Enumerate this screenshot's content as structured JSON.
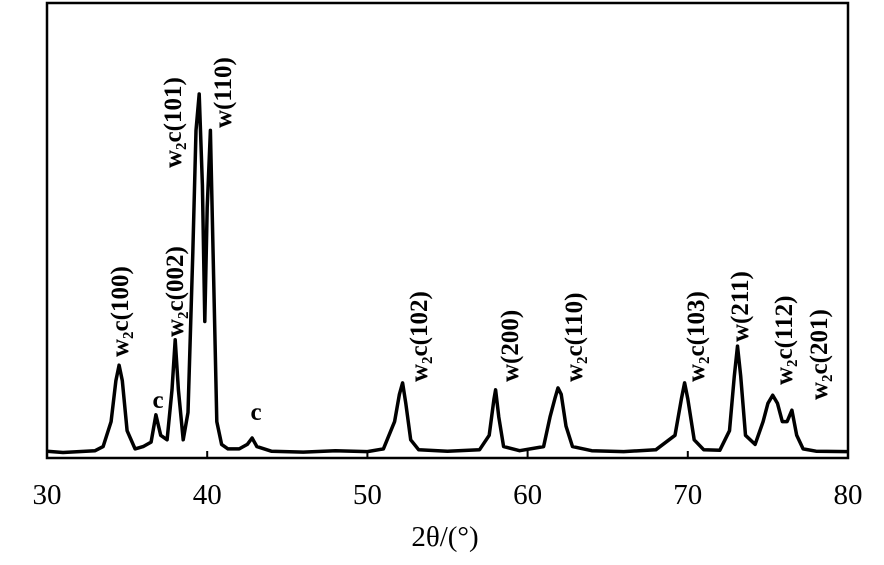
{
  "chart_data": {
    "type": "line",
    "x_label": "2θ/(°)",
    "x": [
      30,
      31,
      32,
      33,
      33.5,
      34,
      34.3,
      34.5,
      34.7,
      35,
      35.5,
      36,
      36.5,
      36.8,
      37.1,
      37.5,
      37.8,
      38.0,
      38.2,
      38.5,
      38.8,
      39.1,
      39.3,
      39.5,
      39.7,
      39.85,
      40.0,
      40.2,
      40.4,
      40.6,
      40.9,
      41.3,
      42,
      42.5,
      42.8,
      43.1,
      44,
      46,
      48,
      50,
      51,
      51.7,
      52.0,
      52.2,
      52.4,
      52.7,
      53.2,
      55,
      57,
      57.6,
      57.9,
      58.0,
      58.2,
      58.5,
      59.5,
      61,
      61.4,
      61.7,
      61.9,
      62.1,
      62.4,
      62.8,
      64,
      66,
      68,
      69.2,
      69.6,
      69.8,
      70.0,
      70.4,
      71,
      72,
      72.6,
      72.9,
      73.1,
      73.3,
      73.6,
      74.2,
      74.7,
      75.0,
      75.3,
      75.6,
      75.9,
      76.2,
      76.5,
      76.8,
      77.2,
      78,
      80
    ],
    "values": [
      1.5,
      1.2,
      1.4,
      1.6,
      2.5,
      8,
      17,
      20.4,
      17,
      6,
      2,
      2.5,
      3.5,
      9.5,
      5,
      4,
      15,
      26,
      15,
      4,
      10,
      45,
      72,
      80,
      60,
      30,
      55,
      72,
      40,
      8,
      3,
      2,
      2,
      3,
      4.4,
      2.5,
      1.5,
      1.3,
      1.6,
      1.4,
      2,
      8,
      14,
      16.5,
      12,
      4,
      1.8,
      1.5,
      1.8,
      5,
      13,
      15,
      9,
      2.5,
      1.6,
      2.5,
      9,
      13,
      15.4,
      14,
      7,
      2.5,
      1.6,
      1.4,
      1.8,
      5,
      13,
      16.5,
      13,
      4,
      1.8,
      1.7,
      6,
      18,
      24.6,
      18,
      5,
      3,
      8,
      12,
      13.8,
      12,
      8,
      8,
      10.5,
      5,
      2,
      1.5,
      1.4
    ],
    "color": "#000000",
    "xlim": [
      30,
      80
    ],
    "xticks": [
      30,
      40,
      50,
      60,
      70,
      80
    ],
    "ylim": [
      0,
      100
    ],
    "annotations": [
      "w₂c(100)",
      "c",
      "w₂c(002)",
      "w₂c(101)",
      "w(110)",
      "c",
      "w₂c(102)",
      "w(200)",
      "w₂c(110)",
      "w₂c(103)",
      "w(211)",
      "w₂c(112)",
      "w₂c(201)"
    ]
  }
}
